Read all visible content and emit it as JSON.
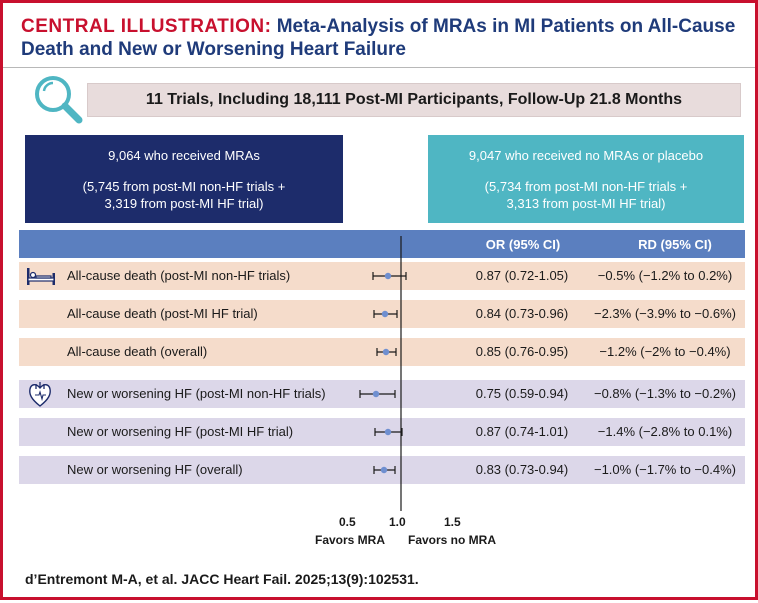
{
  "title": {
    "lead": "CENTRAL ILLUSTRATION:",
    "text": "Meta-Analysis of MRAs in MI Patients on All-Cause Death and New or Worsening Heart Failure"
  },
  "summary": "11 Trials, Including 18,111 Post-MI Participants, Follow-Up 21.8 Months",
  "arms": {
    "mra": {
      "count": "9,064 who received MRAs",
      "detail_1": "(5,745 from post-MI non-HF trials +",
      "detail_2": "3,319 from post-MI HF trial)"
    },
    "no_mra": {
      "count": "9,047 who received no MRAs or placebo",
      "detail_1": "(5,734 from post-MI non-HF trials +",
      "detail_2": "3,313 from post-MI HF trial)"
    }
  },
  "table": {
    "or_header": "OR (95% CI)",
    "rd_header": "RD (95% CI)",
    "rows": [
      {
        "label": "All-cause death (post-MI non-HF trials)",
        "or": "0.87 (0.72-1.05)",
        "rd": "−0.5% (−1.2% to 0.2%)"
      },
      {
        "label": "All-cause death (post-MI HF trial)",
        "or": "0.84 (0.73-0.96)",
        "rd": "−2.3% (−3.9% to −0.6%)"
      },
      {
        "label": "All-cause death (overall)",
        "or": "0.85 (0.76-0.95)",
        "rd": "−1.2% (−2% to −0.4%)"
      },
      {
        "label": "New or worsening HF (post-MI non-HF trials)",
        "or": "0.75 (0.59-0.94)",
        "rd": "−0.8% (−1.3% to −0.2%)"
      },
      {
        "label": "New or worsening HF (post-MI HF trial)",
        "or": "0.87 (0.74-1.01)",
        "rd": "−1.4% (−2.8% to 0.1%)"
      },
      {
        "label": "New or worsening HF (overall)",
        "or": "0.83 (0.73-0.94)",
        "rd": "−1.0% (−1.7% to −0.4%)"
      }
    ]
  },
  "axis": {
    "ticks": [
      "0.5",
      "1.0",
      "1.5"
    ],
    "favors_left": "Favors MRA",
    "favors_right": "Favors no MRA"
  },
  "citation": "d’Entremont M-A, et al. JACC Heart Fail. 2025;13(9):102531.",
  "colors": {
    "frame": "#c8102e",
    "title": "#1f3b7a",
    "mra_box": "#1d2c6b",
    "no_mra_box": "#4fb6c3",
    "header_band": "#5b7fbf",
    "death_row": "#f5dccb",
    "hf_row": "#dcd7e9",
    "marker": "#6f8fd0"
  },
  "icons": {
    "summary": "magnifier-icon",
    "death": "hospital-bed-icon",
    "hf": "heart-icon"
  },
  "forest_estimates": [
    {
      "or": 0.87,
      "lo": 0.72,
      "hi": 1.05
    },
    {
      "or": 0.84,
      "lo": 0.73,
      "hi": 0.96
    },
    {
      "or": 0.85,
      "lo": 0.76,
      "hi": 0.95
    },
    {
      "or": 0.75,
      "lo": 0.59,
      "hi": 0.94
    },
    {
      "or": 0.87,
      "lo": 0.74,
      "hi": 1.01
    },
    {
      "or": 0.83,
      "lo": 0.73,
      "hi": 0.94
    }
  ]
}
